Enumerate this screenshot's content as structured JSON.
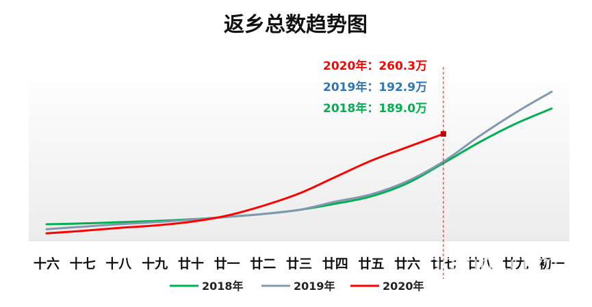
{
  "chart_data": {
    "type": "line",
    "title": "返乡总数趋势图",
    "categories": [
      "十六",
      "十七",
      "十八",
      "十九",
      "廿十",
      "廿一",
      "廿二",
      "廿三",
      "廿四",
      "廿五",
      "廿六",
      "廿七",
      "廿八",
      "廿九",
      "初一"
    ],
    "series": [
      {
        "name": "2018年",
        "color": "#00b050",
        "values": [
          40,
          42,
          45,
          48,
          52,
          58,
          65,
          75,
          90,
          108,
          140,
          189,
          240,
          285,
          322
        ]
      },
      {
        "name": "2019年",
        "color": "#8497b0",
        "values": [
          28,
          34,
          40,
          45,
          51,
          58,
          65,
          75,
          95,
          113,
          145,
          192.9,
          255,
          312,
          363
        ]
      },
      {
        "name": "2020年",
        "color": "#ff0000",
        "values": [
          18,
          24,
          31,
          37,
          46,
          61,
          85,
          115,
          155,
          195,
          228,
          260.3,
          null,
          null,
          null
        ]
      }
    ],
    "ylim": [
      0,
      420
    ],
    "legend_position": "bottom",
    "marker_index": 11,
    "annotations": [
      {
        "text": "2020年：260.3万",
        "color": "#ff0000"
      },
      {
        "text": "2019年：192.9万",
        "color": "#2e75b6"
      },
      {
        "text": "2018年：189.0万",
        "color": "#00b050"
      }
    ]
  },
  "watermark": "gdmm.com"
}
